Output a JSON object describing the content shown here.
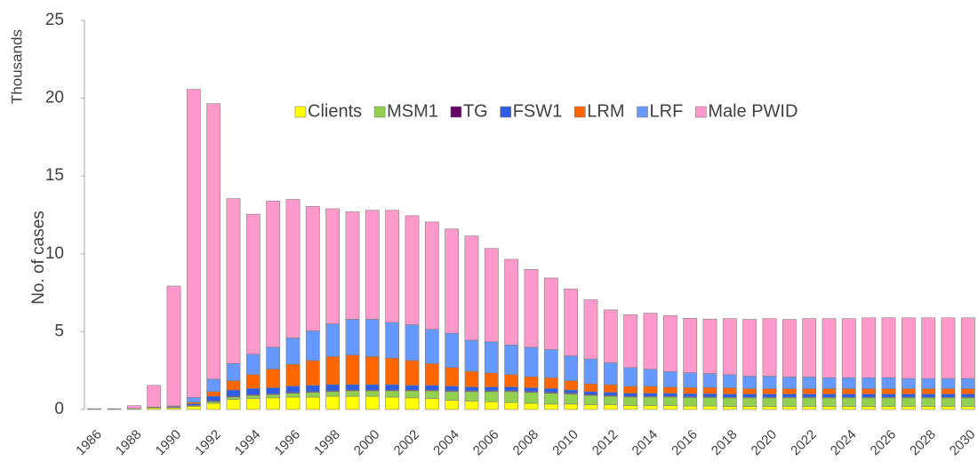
{
  "chart_data": {
    "type": "stacked_bar",
    "y_label": "No. of cases",
    "y_unit_label": "Thousands",
    "categories": [
      "1986",
      null,
      "1988",
      null,
      "1990",
      null,
      "1992",
      null,
      "1994",
      null,
      "1996",
      null,
      "1998",
      null,
      "2000",
      null,
      "2002",
      null,
      "2004",
      null,
      "2006",
      null,
      "2008",
      null,
      "2010",
      null,
      "2012",
      null,
      "2014",
      null,
      "2016",
      null,
      "2018",
      null,
      "2020",
      null,
      "2022",
      null,
      "2024",
      null,
      "2026",
      null,
      "2028",
      null,
      "2030"
    ],
    "ylim": [
      0,
      25
    ],
    "yticks": [
      0,
      5,
      10,
      15,
      20,
      25
    ],
    "grid": false,
    "series": [
      {
        "name": "Clients",
        "color": "#ffff00",
        "values": [
          0.02,
          0.02,
          0.05,
          0.1,
          0.1,
          0.2,
          0.4,
          0.65,
          0.7,
          0.75,
          0.8,
          0.8,
          0.85,
          0.85,
          0.85,
          0.8,
          0.75,
          0.7,
          0.6,
          0.55,
          0.5,
          0.45,
          0.4,
          0.35,
          0.35,
          0.3,
          0.3,
          0.25,
          0.25,
          0.25,
          0.22,
          0.22,
          0.2,
          0.2,
          0.2,
          0.2,
          0.2,
          0.2,
          0.2,
          0.2,
          0.2,
          0.2,
          0.2,
          0.2,
          0.2
        ]
      },
      {
        "name": "MSM1",
        "color": "#92d050",
        "values": [
          0,
          0,
          0,
          0.02,
          0.03,
          0.05,
          0.1,
          0.15,
          0.2,
          0.2,
          0.25,
          0.3,
          0.3,
          0.35,
          0.35,
          0.4,
          0.45,
          0.5,
          0.55,
          0.6,
          0.65,
          0.7,
          0.7,
          0.7,
          0.65,
          0.6,
          0.55,
          0.55,
          0.55,
          0.55,
          0.55,
          0.55,
          0.55,
          0.55,
          0.55,
          0.55,
          0.55,
          0.55,
          0.55,
          0.55,
          0.55,
          0.55,
          0.55,
          0.55,
          0.55
        ]
      },
      {
        "name": "TG",
        "color": "#660066",
        "values": [
          0,
          0,
          0,
          0,
          0.01,
          0.02,
          0.05,
          0.05,
          0.05,
          0.05,
          0.05,
          0.05,
          0.05,
          0.05,
          0.05,
          0.05,
          0.05,
          0.05,
          0.05,
          0.05,
          0.05,
          0.05,
          0.05,
          0.05,
          0.05,
          0.05,
          0.05,
          0.04,
          0.04,
          0.04,
          0.04,
          0.04,
          0.04,
          0.04,
          0.04,
          0.04,
          0.04,
          0.04,
          0.04,
          0.04,
          0.04,
          0.04,
          0.04,
          0.04,
          0.04
        ]
      },
      {
        "name": "FSW1",
        "color": "#2e5ce6",
        "values": [
          0,
          0,
          0,
          0.01,
          0.03,
          0.1,
          0.3,
          0.4,
          0.4,
          0.4,
          0.4,
          0.4,
          0.4,
          0.35,
          0.35,
          0.35,
          0.3,
          0.3,
          0.3,
          0.25,
          0.25,
          0.25,
          0.25,
          0.25,
          0.2,
          0.2,
          0.2,
          0.2,
          0.2,
          0.2,
          0.2,
          0.2,
          0.2,
          0.2,
          0.2,
          0.2,
          0.2,
          0.2,
          0.2,
          0.2,
          0.2,
          0.2,
          0.2,
          0.2,
          0.2
        ]
      },
      {
        "name": "LRM",
        "color": "#ff6600",
        "values": [
          0,
          0,
          0,
          0.01,
          0.02,
          0.1,
          0.3,
          0.6,
          0.9,
          1.2,
          1.4,
          1.6,
          1.8,
          1.9,
          1.8,
          1.7,
          1.6,
          1.4,
          1.2,
          1.0,
          0.9,
          0.8,
          0.7,
          0.7,
          0.6,
          0.5,
          0.5,
          0.45,
          0.45,
          0.4,
          0.4,
          0.4,
          0.4,
          0.35,
          0.35,
          0.35,
          0.35,
          0.35,
          0.35,
          0.35,
          0.35,
          0.35,
          0.35,
          0.35,
          0.35
        ]
      },
      {
        "name": "LRF",
        "color": "#6699ff",
        "values": [
          0,
          0,
          0.01,
          0.02,
          0.04,
          0.3,
          0.8,
          1.1,
          1.3,
          1.4,
          1.7,
          1.9,
          2.1,
          2.3,
          2.4,
          2.3,
          2.3,
          2.2,
          2.2,
          2.0,
          2.0,
          1.9,
          1.9,
          1.8,
          1.6,
          1.6,
          1.4,
          1.2,
          1.1,
          1.0,
          0.95,
          0.9,
          0.85,
          0.8,
          0.8,
          0.75,
          0.75,
          0.7,
          0.7,
          0.7,
          0.7,
          0.65,
          0.65,
          0.65,
          0.65
        ]
      },
      {
        "name": "Male PWID",
        "color": "#ff99cc",
        "values": [
          0.03,
          0.03,
          0.19,
          1.39,
          7.7,
          19.8,
          17.7,
          10.6,
          9.0,
          9.4,
          8.9,
          8.0,
          7.4,
          6.9,
          7.0,
          7.2,
          7.0,
          6.9,
          6.7,
          6.7,
          6.0,
          5.5,
          5.0,
          4.6,
          4.3,
          3.8,
          3.4,
          3.4,
          3.6,
          3.6,
          3.5,
          3.5,
          3.6,
          3.65,
          3.7,
          3.7,
          3.75,
          3.8,
          3.8,
          3.85,
          3.85,
          3.9,
          3.9,
          3.9,
          3.9
        ]
      }
    ]
  }
}
